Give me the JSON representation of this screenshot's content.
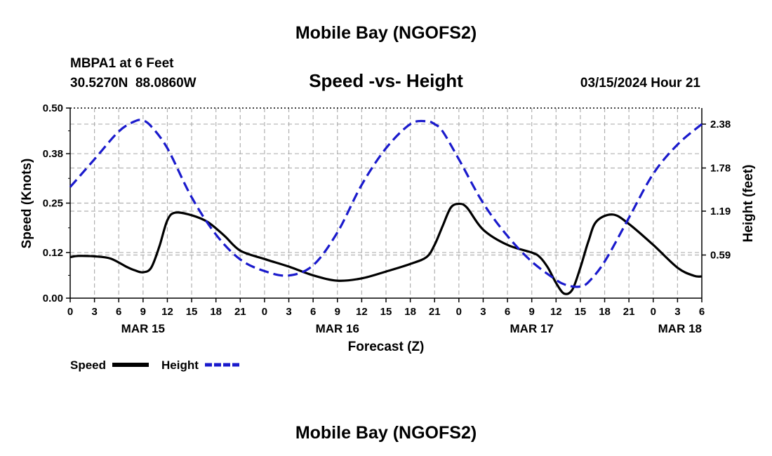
{
  "page": {
    "title_top": "Mobile Bay (NGOFS2)",
    "title_bottom": "Mobile Bay (NGOFS2)"
  },
  "station": {
    "name": "MBPA1 at 6 Feet",
    "coords": "30.5270N  88.0860W"
  },
  "chart_title": "Speed -vs- Height",
  "timestamp": "03/15/2024 Hour 21",
  "legend": {
    "speed_label": "Speed",
    "height_label": "Height"
  },
  "colors": {
    "speed": "#000000",
    "height": "#1a1acc",
    "grid": "#b0b0b0"
  },
  "chart_data": {
    "type": "line",
    "title": "Speed -vs- Height",
    "xlabel": "Forecast (Z)",
    "ylabel": "Speed (Knots)",
    "ylabel_right": "Height (feet)",
    "x_range_hours": [
      0,
      78
    ],
    "x_tick_labels": [
      "0",
      "3",
      "6",
      "9",
      "12",
      "15",
      "18",
      "21",
      "0",
      "3",
      "6",
      "9",
      "12",
      "15",
      "18",
      "21",
      "0",
      "3",
      "6",
      "9",
      "12",
      "15",
      "18",
      "21",
      "0",
      "3",
      "6"
    ],
    "date_labels": [
      {
        "label": "MAR 15",
        "hour": 9
      },
      {
        "label": "MAR 16",
        "hour": 33
      },
      {
        "label": "MAR 17",
        "hour": 57
      },
      {
        "label": "MAR 18",
        "hour": 81
      }
    ],
    "ylim_left": [
      0,
      0.5
    ],
    "yticks_left": [
      "0.00",
      "0.12",
      "0.25",
      "0.38",
      "0.50"
    ],
    "ylim_right": [
      0,
      2.6
    ],
    "yticks_right": [
      "0.59",
      "1.19",
      "1.78",
      "2.38"
    ],
    "grid": true,
    "series": [
      {
        "name": "Speed",
        "style": "solid",
        "axis": "left",
        "x": [
          0,
          1,
          3,
          5,
          7,
          8,
          9,
          10,
          11,
          12,
          13,
          15,
          17,
          19,
          21,
          24,
          27,
          30,
          33,
          36,
          39,
          42,
          44,
          45,
          46,
          47,
          48,
          49,
          51,
          54,
          57,
          58,
          59,
          60,
          61,
          62,
          63,
          64,
          65,
          67,
          69,
          72,
          75,
          77,
          78
        ],
        "values": [
          0.108,
          0.111,
          0.11,
          0.104,
          0.082,
          0.073,
          0.068,
          0.08,
          0.135,
          0.205,
          0.225,
          0.218,
          0.2,
          0.165,
          0.125,
          0.103,
          0.083,
          0.06,
          0.046,
          0.052,
          0.07,
          0.09,
          0.108,
          0.14,
          0.19,
          0.238,
          0.248,
          0.238,
          0.18,
          0.14,
          0.12,
          0.108,
          0.08,
          0.04,
          0.012,
          0.022,
          0.08,
          0.15,
          0.202,
          0.22,
          0.195,
          0.14,
          0.08,
          0.059,
          0.057
        ]
      },
      {
        "name": "Height",
        "style": "dashed",
        "axis": "right",
        "x": [
          0,
          3,
          6,
          8,
          9,
          10,
          12,
          15,
          18,
          21,
          24,
          27,
          30,
          33,
          36,
          39,
          42,
          44,
          45,
          46,
          48,
          51,
          54,
          57,
          60,
          61,
          62,
          63,
          64,
          66,
          69,
          72,
          75,
          78
        ],
        "values": [
          1.52,
          1.9,
          2.28,
          2.42,
          2.43,
          2.35,
          2.05,
          1.38,
          0.87,
          0.53,
          0.37,
          0.31,
          0.45,
          0.9,
          1.55,
          2.05,
          2.38,
          2.42,
          2.38,
          2.28,
          1.9,
          1.3,
          0.85,
          0.5,
          0.25,
          0.19,
          0.16,
          0.16,
          0.22,
          0.5,
          1.1,
          1.7,
          2.1,
          2.38
        ]
      }
    ]
  }
}
